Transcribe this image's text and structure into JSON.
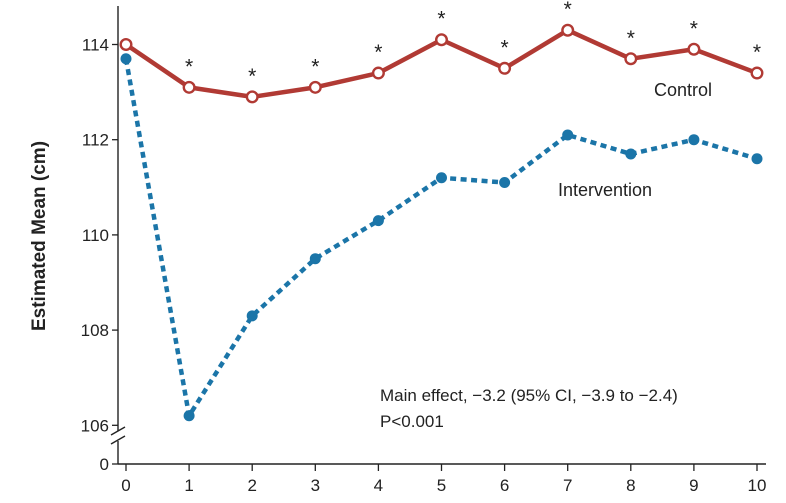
{
  "chart_data": {
    "type": "line",
    "title": "",
    "xlabel": "",
    "ylabel": "Estimated Mean (cm)",
    "x": [
      0,
      1,
      2,
      3,
      4,
      5,
      6,
      7,
      8,
      9,
      10
    ],
    "x_ticks": [
      "0",
      "1",
      "2",
      "3",
      "4",
      "5",
      "6",
      "7",
      "8",
      "9",
      "10"
    ],
    "y_ticks": [
      "106",
      "108",
      "110",
      "112",
      "114"
    ],
    "y_break_tick": "0",
    "ylim": [
      105.8,
      114.8
    ],
    "grid": false,
    "legend": "inline labels",
    "series": [
      {
        "name": "Control",
        "color": "#b13a34",
        "style": "solid",
        "marker": "open-circle",
        "values": [
          114.0,
          113.1,
          112.9,
          113.1,
          113.4,
          114.1,
          113.5,
          114.3,
          113.7,
          113.9,
          113.4
        ]
      },
      {
        "name": "Intervention",
        "color": "#1b75a8",
        "style": "dotted",
        "marker": "filled-circle",
        "values": [
          113.7,
          106.2,
          108.3,
          109.5,
          110.3,
          111.2,
          111.1,
          112.1,
          111.7,
          112.0,
          111.6
        ]
      }
    ],
    "significance_marker": "*",
    "significant_x": [
      1,
      2,
      3,
      4,
      5,
      6,
      7,
      8,
      9,
      10
    ],
    "annotations": [
      "Main effect, −3.2 (95% CI, −3.9 to −2.4)",
      "P<0.001"
    ]
  }
}
